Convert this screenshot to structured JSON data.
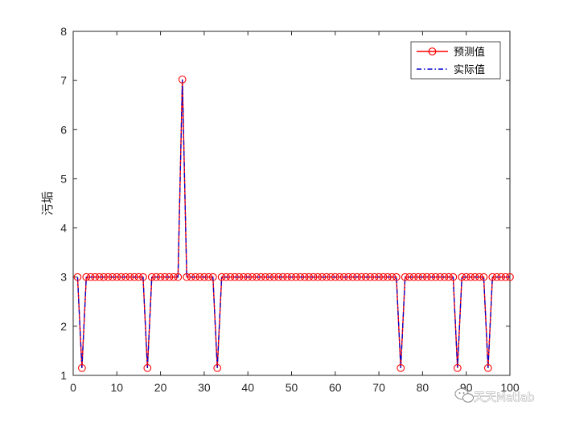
{
  "chart_data": {
    "type": "line",
    "title": "",
    "xlabel": "",
    "ylabel": "污垢",
    "xlim": [
      0,
      100
    ],
    "ylim": [
      1,
      8
    ],
    "xticks": [
      "0",
      "10",
      "20",
      "30",
      "40",
      "50",
      "60",
      "70",
      "80",
      "90",
      "100"
    ],
    "yticks": [
      "1",
      "2",
      "3",
      "4",
      "5",
      "6",
      "7",
      "8"
    ],
    "grid": false,
    "legend_position": "top-right",
    "x": [
      1,
      2,
      3,
      4,
      5,
      6,
      7,
      8,
      9,
      10,
      11,
      12,
      13,
      14,
      15,
      16,
      17,
      18,
      19,
      20,
      21,
      22,
      23,
      24,
      25,
      26,
      27,
      28,
      29,
      30,
      31,
      32,
      33,
      34,
      35,
      36,
      37,
      38,
      39,
      40,
      41,
      42,
      43,
      44,
      45,
      46,
      47,
      48,
      49,
      50,
      51,
      52,
      53,
      54,
      55,
      56,
      57,
      58,
      59,
      60,
      61,
      62,
      63,
      64,
      65,
      66,
      67,
      68,
      69,
      70,
      71,
      72,
      73,
      74,
      75,
      76,
      77,
      78,
      79,
      80,
      81,
      82,
      83,
      84,
      85,
      86,
      87,
      88,
      89,
      90,
      91,
      92,
      93,
      94,
      95,
      96,
      97,
      98,
      99,
      100
    ],
    "series": [
      {
        "name": "预测值",
        "color": "#ff0000",
        "style": "solid-circle-markers",
        "values": [
          3,
          1.15,
          3,
          3,
          3,
          3,
          3,
          3,
          3,
          3,
          3,
          3,
          3,
          3,
          3,
          3,
          1.15,
          3,
          3,
          3,
          3,
          3,
          3,
          3,
          7.02,
          3,
          3,
          3,
          3,
          3,
          3,
          3,
          1.15,
          3,
          3,
          3,
          3,
          3,
          3,
          3,
          3,
          3,
          3,
          3,
          3,
          3,
          3,
          3,
          3,
          3,
          3,
          3,
          3,
          3,
          3,
          3,
          3,
          3,
          3,
          3,
          3,
          3,
          3,
          3,
          3,
          3,
          3,
          3,
          3,
          3,
          3,
          3,
          3,
          3,
          1.15,
          3,
          3,
          3,
          3,
          3,
          3,
          3,
          3,
          3,
          3,
          3,
          3,
          1.15,
          3,
          3,
          3,
          3,
          3,
          3,
          1.15,
          3,
          3,
          3,
          3,
          3
        ]
      },
      {
        "name": "实际值",
        "color": "#0000cc",
        "style": "dash-dot",
        "values": [
          3,
          1.15,
          3,
          3,
          3,
          3,
          3,
          3,
          3,
          3,
          3,
          3,
          3,
          3,
          3,
          3,
          1.15,
          3,
          3,
          3,
          3,
          3,
          3,
          3,
          7.02,
          3,
          3,
          3,
          3,
          3,
          3,
          3,
          1.15,
          3,
          3,
          3,
          3,
          3,
          3,
          3,
          3,
          3,
          3,
          3,
          3,
          3,
          3,
          3,
          3,
          3,
          3,
          3,
          3,
          3,
          3,
          3,
          3,
          3,
          3,
          3,
          3,
          3,
          3,
          3,
          3,
          3,
          3,
          3,
          3,
          3,
          3,
          3,
          3,
          3,
          1.15,
          3,
          3,
          3,
          3,
          3,
          3,
          3,
          3,
          3,
          3,
          3,
          3,
          1.15,
          3,
          3,
          3,
          3,
          3,
          3,
          1.15,
          3,
          3,
          3,
          3,
          3
        ]
      }
    ]
  },
  "watermark": {
    "text": "天天Matlab"
  }
}
